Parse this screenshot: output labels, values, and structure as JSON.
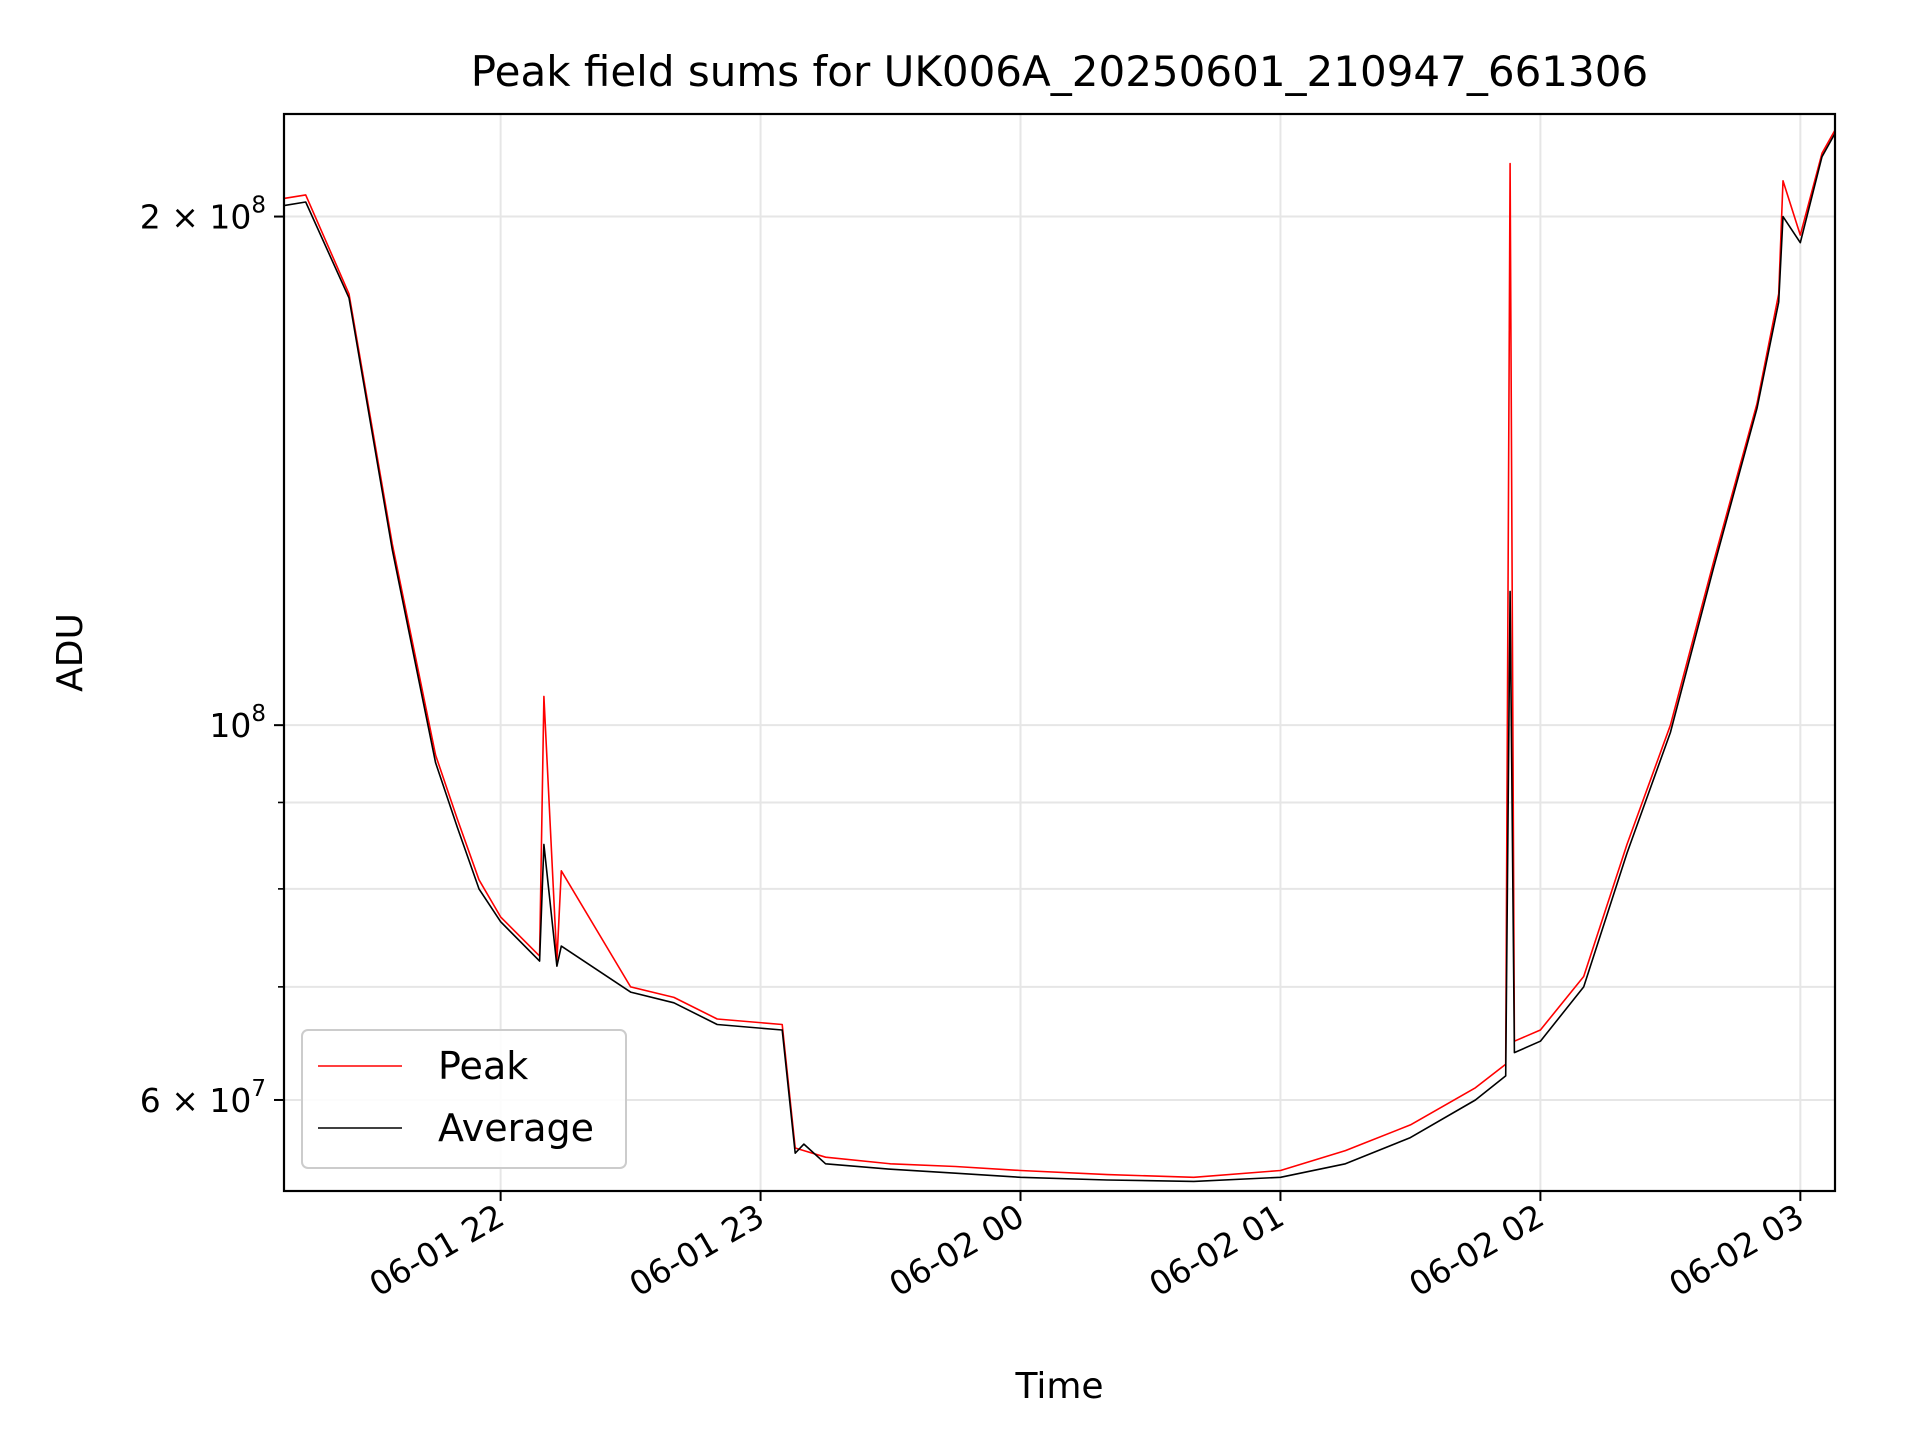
{
  "chart_data": {
    "type": "line",
    "title": "Peak field sums for UK006A_20250601_210947_661306",
    "xlabel": "Time",
    "ylabel": "ADU",
    "yscale": "log",
    "grid": true,
    "legend_position": "lower-left",
    "xlim": [
      "2025-06-01 21:10",
      "2025-06-02 03:08"
    ],
    "ylim": [
      53000000,
      230000000
    ],
    "x_ticks": [
      {
        "value": "2025-06-01 22:00",
        "label": "06-01 22"
      },
      {
        "value": "2025-06-01 23:00",
        "label": "06-01 23"
      },
      {
        "value": "2025-06-02 00:00",
        "label": "06-02 00"
      },
      {
        "value": "2025-06-02 01:00",
        "label": "06-02 01"
      },
      {
        "value": "2025-06-02 02:00",
        "label": "06-02 02"
      },
      {
        "value": "2025-06-02 03:00",
        "label": "06-02 03"
      }
    ],
    "y_ticks": [
      {
        "value": 200000000,
        "label": "2 × 10^8",
        "mantissa": "2 × 10",
        "exponent": "8"
      },
      {
        "value": 100000000,
        "label": "10^8",
        "mantissa": "10",
        "exponent": "8"
      },
      {
        "value": 60000000,
        "label": "6 × 10^7",
        "mantissa": "6 × 10",
        "exponent": "7"
      }
    ],
    "y_minor_ticks": [
      70000000,
      80000000,
      90000000
    ],
    "series": [
      {
        "name": "Peak",
        "color": "#ff0000",
        "x": [
          "2025-06-01 21:10",
          "2025-06-01 21:15",
          "2025-06-01 21:25",
          "2025-06-01 21:35",
          "2025-06-01 21:45",
          "2025-06-01 21:50",
          "2025-06-01 21:55",
          "2025-06-01 22:00",
          "2025-06-01 22:09",
          "2025-06-01 22:10",
          "2025-06-01 22:13",
          "2025-06-01 22:14",
          "2025-06-01 22:30",
          "2025-06-01 22:40",
          "2025-06-01 22:50",
          "2025-06-01 23:05",
          "2025-06-01 23:08",
          "2025-06-01 23:10",
          "2025-06-01 23:15",
          "2025-06-01 23:30",
          "2025-06-01 23:45",
          "2025-06-02 00:00",
          "2025-06-02 00:20",
          "2025-06-02 00:40",
          "2025-06-02 01:00",
          "2025-06-02 01:15",
          "2025-06-02 01:30",
          "2025-06-02 01:45",
          "2025-06-02 01:52",
          "2025-06-02 01:53",
          "2025-06-02 01:54",
          "2025-06-02 02:00",
          "2025-06-02 02:10",
          "2025-06-02 02:20",
          "2025-06-02 02:30",
          "2025-06-02 02:40",
          "2025-06-02 02:50",
          "2025-06-02 02:55",
          "2025-06-02 02:56",
          "2025-06-02 03:00",
          "2025-06-02 03:05",
          "2025-06-02 03:08"
        ],
        "y": [
          205000000,
          206000000,
          180000000,
          128000000,
          96000000,
          88000000,
          81000000,
          77000000,
          73000000,
          104000000,
          72500000,
          82000000,
          70000000,
          69000000,
          67000000,
          66500000,
          56200000,
          56000000,
          55500000,
          55000000,
          54800000,
          54500000,
          54200000,
          54000000,
          54500000,
          56000000,
          58000000,
          61000000,
          63000000,
          215000000,
          65000000,
          66000000,
          71000000,
          85000000,
          100000000,
          125000000,
          155000000,
          180000000,
          210000000,
          195000000,
          218000000,
          225000000
        ]
      },
      {
        "name": "Average",
        "color": "#000000",
        "x": [
          "2025-06-01 21:10",
          "2025-06-01 21:15",
          "2025-06-01 21:25",
          "2025-06-01 21:35",
          "2025-06-01 21:45",
          "2025-06-01 21:50",
          "2025-06-01 21:55",
          "2025-06-01 22:00",
          "2025-06-01 22:09",
          "2025-06-01 22:10",
          "2025-06-01 22:13",
          "2025-06-01 22:14",
          "2025-06-01 22:30",
          "2025-06-01 22:40",
          "2025-06-01 22:50",
          "2025-06-01 23:05",
          "2025-06-01 23:08",
          "2025-06-01 23:10",
          "2025-06-01 23:15",
          "2025-06-01 23:30",
          "2025-06-01 23:45",
          "2025-06-02 00:00",
          "2025-06-02 00:20",
          "2025-06-02 00:40",
          "2025-06-02 01:00",
          "2025-06-02 01:15",
          "2025-06-02 01:30",
          "2025-06-02 01:45",
          "2025-06-02 01:52",
          "2025-06-02 01:53",
          "2025-06-02 01:54",
          "2025-06-02 02:00",
          "2025-06-02 02:10",
          "2025-06-02 02:20",
          "2025-06-02 02:30",
          "2025-06-02 02:40",
          "2025-06-02 02:50",
          "2025-06-02 02:55",
          "2025-06-02 02:56",
          "2025-06-02 03:00",
          "2025-06-02 03:05",
          "2025-06-02 03:08"
        ],
        "y": [
          203000000,
          204000000,
          179000000,
          127000000,
          95000000,
          87000000,
          80000000,
          76500000,
          72500000,
          85000000,
          72000000,
          74000000,
          69500000,
          68500000,
          66500000,
          66000000,
          55800000,
          56500000,
          55000000,
          54600000,
          54300000,
          54000000,
          53800000,
          53700000,
          54000000,
          55000000,
          57000000,
          60000000,
          62000000,
          120000000,
          64000000,
          65000000,
          70000000,
          84000000,
          99000000,
          124000000,
          154000000,
          178000000,
          200000000,
          193000000,
          217000000,
          224000000
        ]
      }
    ]
  }
}
